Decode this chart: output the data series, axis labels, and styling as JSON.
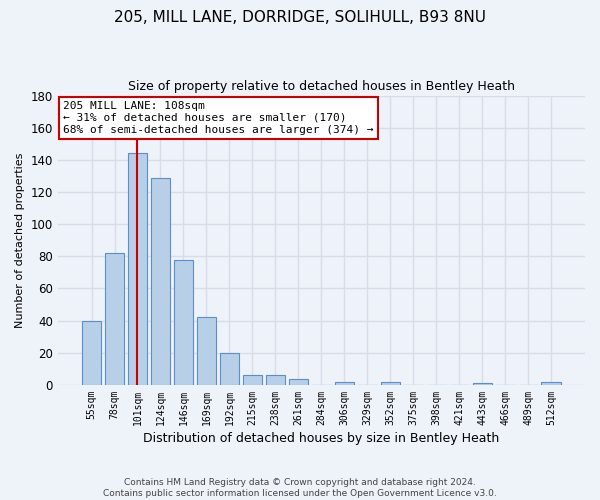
{
  "title": "205, MILL LANE, DORRIDGE, SOLIHULL, B93 8NU",
  "subtitle": "Size of property relative to detached houses in Bentley Heath",
  "xlabel": "Distribution of detached houses by size in Bentley Heath",
  "ylabel": "Number of detached properties",
  "bar_labels": [
    "55sqm",
    "78sqm",
    "101sqm",
    "124sqm",
    "146sqm",
    "169sqm",
    "192sqm",
    "215sqm",
    "238sqm",
    "261sqm",
    "284sqm",
    "306sqm",
    "329sqm",
    "352sqm",
    "375sqm",
    "398sqm",
    "421sqm",
    "443sqm",
    "466sqm",
    "489sqm",
    "512sqm"
  ],
  "bar_values": [
    40,
    82,
    144,
    129,
    78,
    42,
    20,
    6,
    6,
    4,
    0,
    2,
    0,
    2,
    0,
    0,
    0,
    1,
    0,
    0,
    2
  ],
  "bar_color": "#b8cfe8",
  "bar_edge_color": "#5b8fc9",
  "vline_x": 2,
  "vline_color": "#cc0000",
  "annotation_line1": "205 MILL LANE: 108sqm",
  "annotation_line2": "← 31% of detached houses are smaller (170)",
  "annotation_line3": "68% of semi-detached houses are larger (374) →",
  "annotation_box_color": "#ffffff",
  "annotation_box_edge": "#cc0000",
  "ylim": [
    0,
    180
  ],
  "yticks": [
    0,
    20,
    40,
    60,
    80,
    100,
    120,
    140,
    160,
    180
  ],
  "footer1": "Contains HM Land Registry data © Crown copyright and database right 2024.",
  "footer2": "Contains public sector information licensed under the Open Government Licence v3.0.",
  "bg_color": "#eef2f9",
  "grid_color": "#d8dde8",
  "title_fontsize": 11,
  "subtitle_fontsize": 9,
  "xlabel_fontsize": 9,
  "ylabel_fontsize": 8,
  "footer_fontsize": 6.5
}
